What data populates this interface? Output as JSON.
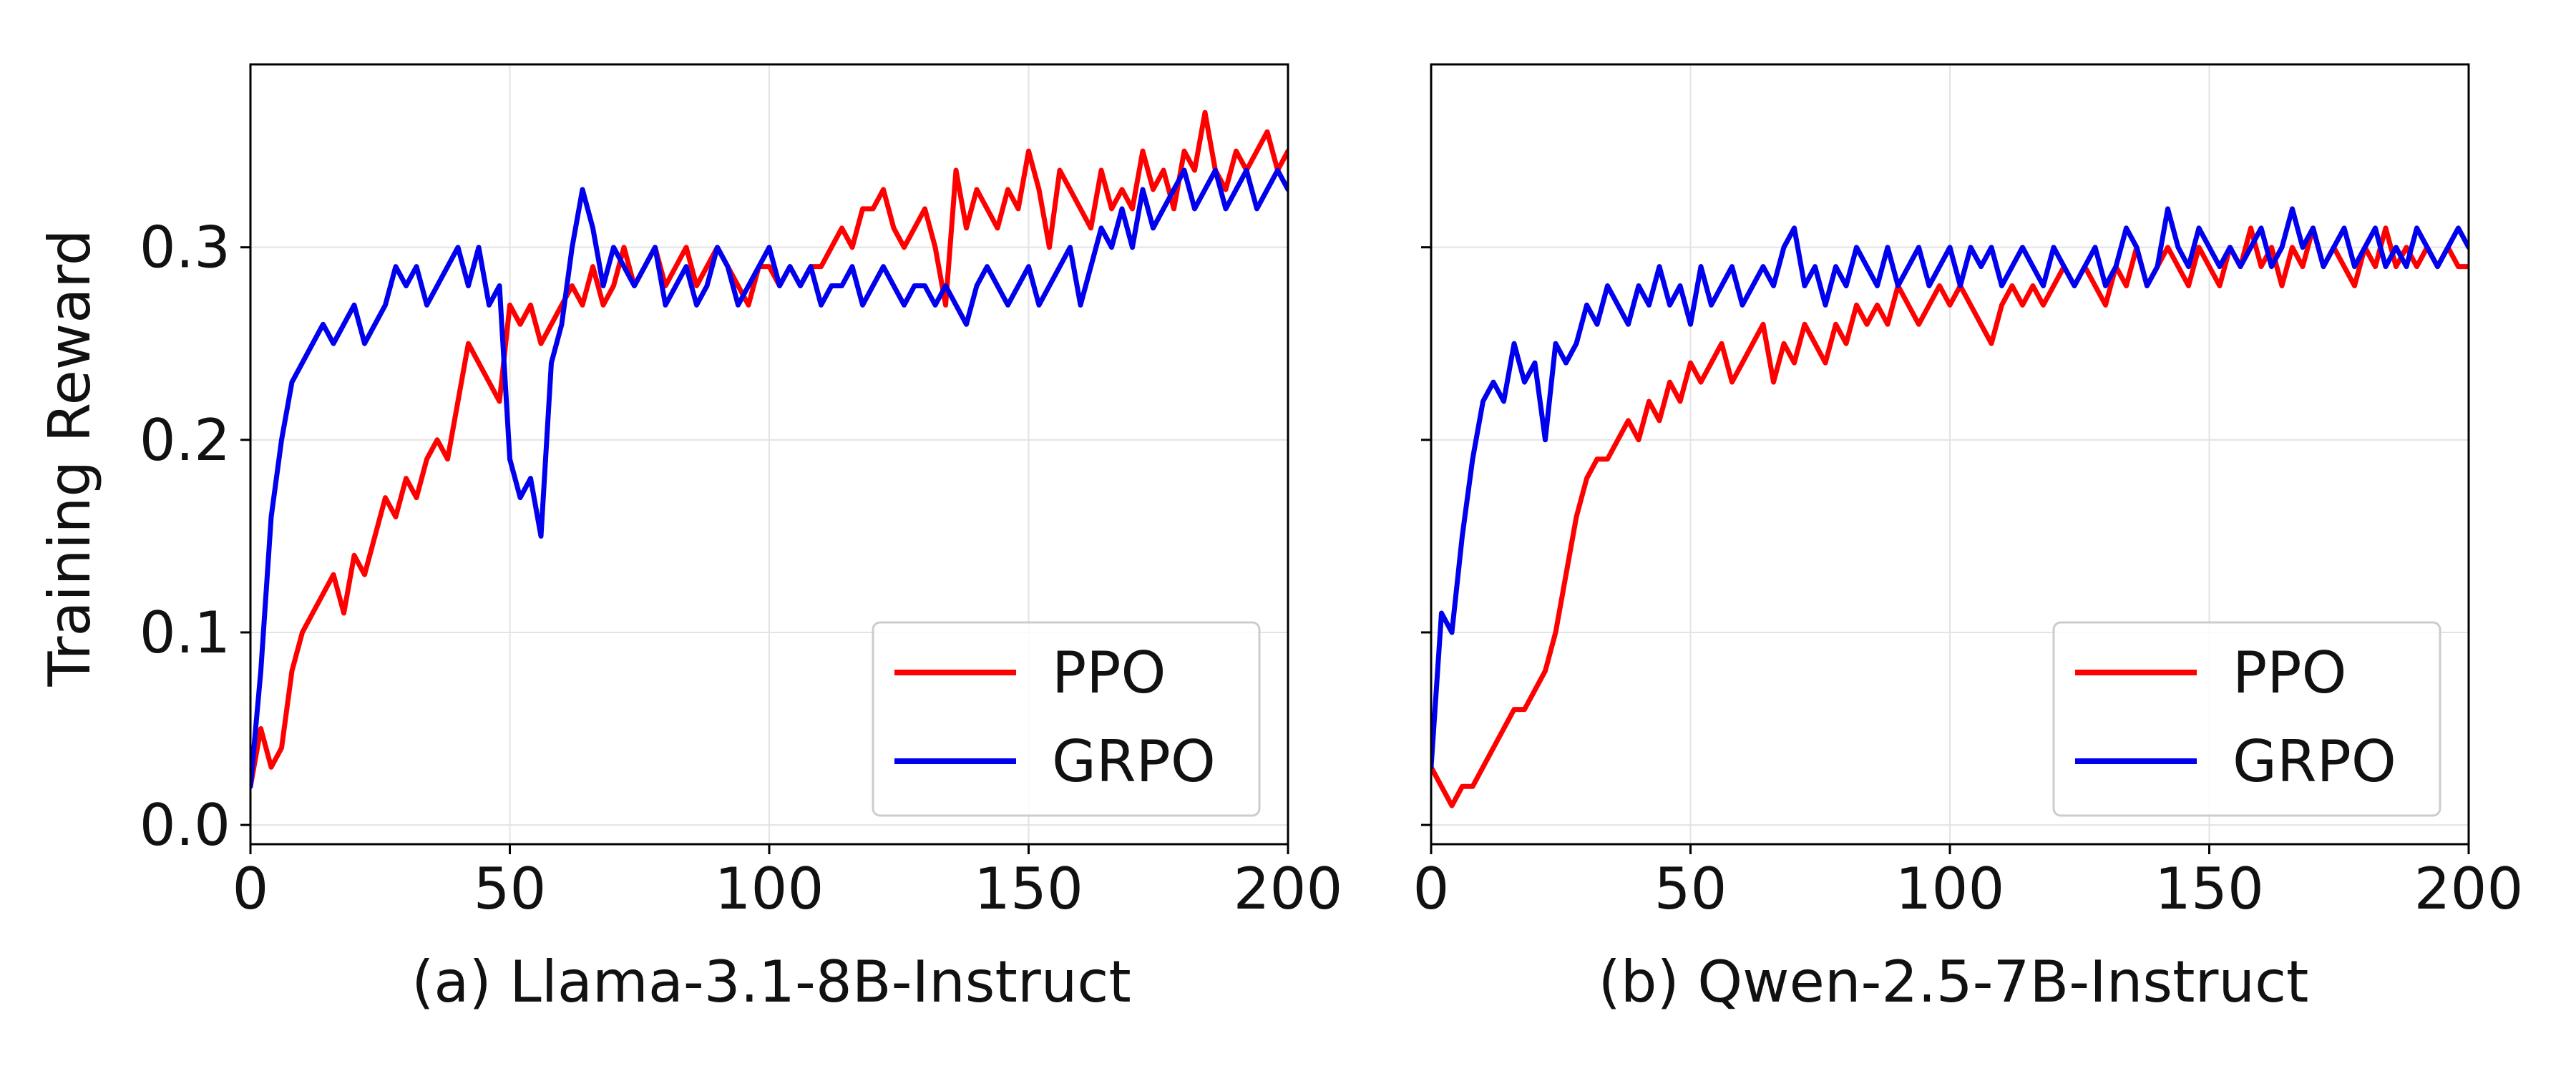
{
  "figure": {
    "shared_ylabel": "Training Reward",
    "yticks": [
      0.0,
      0.1,
      0.2,
      0.3
    ],
    "ytick_labels": [
      "0.0",
      "0.1",
      "0.2",
      "0.3"
    ],
    "xticks": [
      0,
      50,
      100,
      150,
      200
    ],
    "xtick_labels": [
      "0",
      "50",
      "100",
      "150",
      "200"
    ],
    "grid": true,
    "legend_position": "lower-right"
  },
  "chart_data": [
    {
      "type": "line",
      "title": "",
      "caption": "(a) Llama-3.1-8B-Instruct",
      "xlabel": "",
      "ylabel": "Training Reward",
      "xlim": [
        0,
        200
      ],
      "ylim": [
        -0.01,
        0.395
      ],
      "series": [
        {
          "name": "PPO",
          "color": "#ff0000",
          "x": [
            0,
            2,
            4,
            6,
            8,
            10,
            12,
            14,
            16,
            18,
            20,
            22,
            24,
            26,
            28,
            30,
            32,
            34,
            36,
            38,
            40,
            42,
            44,
            46,
            48,
            50,
            52,
            54,
            56,
            58,
            60,
            62,
            64,
            66,
            68,
            70,
            72,
            74,
            76,
            78,
            80,
            82,
            84,
            86,
            88,
            90,
            92,
            94,
            96,
            98,
            100,
            102,
            104,
            106,
            108,
            110,
            112,
            114,
            116,
            118,
            120,
            122,
            124,
            126,
            128,
            130,
            132,
            134,
            136,
            138,
            140,
            142,
            144,
            146,
            148,
            150,
            152,
            154,
            156,
            158,
            160,
            162,
            164,
            166,
            168,
            170,
            172,
            174,
            176,
            178,
            180,
            182,
            184,
            186,
            188,
            190,
            192,
            194,
            196,
            198,
            200
          ],
          "y": [
            0.02,
            0.05,
            0.03,
            0.04,
            0.08,
            0.1,
            0.11,
            0.12,
            0.13,
            0.11,
            0.14,
            0.13,
            0.15,
            0.17,
            0.16,
            0.18,
            0.17,
            0.19,
            0.2,
            0.19,
            0.22,
            0.25,
            0.24,
            0.23,
            0.22,
            0.27,
            0.26,
            0.27,
            0.25,
            0.26,
            0.27,
            0.28,
            0.27,
            0.29,
            0.27,
            0.28,
            0.3,
            0.28,
            0.29,
            0.3,
            0.28,
            0.29,
            0.3,
            0.28,
            0.29,
            0.3,
            0.29,
            0.28,
            0.27,
            0.29,
            0.29,
            0.28,
            0.29,
            0.28,
            0.29,
            0.29,
            0.3,
            0.31,
            0.3,
            0.32,
            0.32,
            0.33,
            0.31,
            0.3,
            0.31,
            0.32,
            0.3,
            0.27,
            0.34,
            0.31,
            0.33,
            0.32,
            0.31,
            0.33,
            0.32,
            0.35,
            0.33,
            0.3,
            0.34,
            0.33,
            0.32,
            0.31,
            0.34,
            0.32,
            0.33,
            0.32,
            0.35,
            0.33,
            0.34,
            0.32,
            0.35,
            0.34,
            0.37,
            0.34,
            0.33,
            0.35,
            0.34,
            0.35,
            0.36,
            0.34,
            0.35
          ]
        },
        {
          "name": "GRPO",
          "color": "#0000ee",
          "x": [
            0,
            2,
            4,
            6,
            8,
            10,
            12,
            14,
            16,
            18,
            20,
            22,
            24,
            26,
            28,
            30,
            32,
            34,
            36,
            38,
            40,
            42,
            44,
            46,
            48,
            50,
            52,
            54,
            56,
            58,
            60,
            62,
            64,
            66,
            68,
            70,
            72,
            74,
            76,
            78,
            80,
            82,
            84,
            86,
            88,
            90,
            92,
            94,
            96,
            98,
            100,
            102,
            104,
            106,
            108,
            110,
            112,
            114,
            116,
            118,
            120,
            122,
            124,
            126,
            128,
            130,
            132,
            134,
            136,
            138,
            140,
            142,
            144,
            146,
            148,
            150,
            152,
            154,
            156,
            158,
            160,
            162,
            164,
            166,
            168,
            170,
            172,
            174,
            176,
            178,
            180,
            182,
            184,
            186,
            188,
            190,
            192,
            194,
            196,
            198,
            200
          ],
          "y": [
            0.02,
            0.08,
            0.16,
            0.2,
            0.23,
            0.24,
            0.25,
            0.26,
            0.25,
            0.26,
            0.27,
            0.25,
            0.26,
            0.27,
            0.29,
            0.28,
            0.29,
            0.27,
            0.28,
            0.29,
            0.3,
            0.28,
            0.3,
            0.27,
            0.28,
            0.19,
            0.17,
            0.18,
            0.15,
            0.24,
            0.26,
            0.3,
            0.33,
            0.31,
            0.28,
            0.3,
            0.29,
            0.28,
            0.29,
            0.3,
            0.27,
            0.28,
            0.29,
            0.27,
            0.28,
            0.3,
            0.29,
            0.27,
            0.28,
            0.29,
            0.3,
            0.28,
            0.29,
            0.28,
            0.29,
            0.27,
            0.28,
            0.28,
            0.29,
            0.27,
            0.28,
            0.29,
            0.28,
            0.27,
            0.28,
            0.28,
            0.27,
            0.28,
            0.27,
            0.26,
            0.28,
            0.29,
            0.28,
            0.27,
            0.28,
            0.29,
            0.27,
            0.28,
            0.29,
            0.3,
            0.27,
            0.29,
            0.31,
            0.3,
            0.32,
            0.3,
            0.33,
            0.31,
            0.32,
            0.33,
            0.34,
            0.32,
            0.33,
            0.34,
            0.32,
            0.33,
            0.34,
            0.32,
            0.33,
            0.34,
            0.33
          ]
        }
      ]
    },
    {
      "type": "line",
      "title": "",
      "caption": "(b) Qwen-2.5-7B-Instruct",
      "xlabel": "",
      "ylabel": "",
      "xlim": [
        0,
        200
      ],
      "ylim": [
        -0.01,
        0.395
      ],
      "series": [
        {
          "name": "PPO",
          "color": "#ff0000",
          "x": [
            0,
            2,
            4,
            6,
            8,
            10,
            12,
            14,
            16,
            18,
            20,
            22,
            24,
            26,
            28,
            30,
            32,
            34,
            36,
            38,
            40,
            42,
            44,
            46,
            48,
            50,
            52,
            54,
            56,
            58,
            60,
            62,
            64,
            66,
            68,
            70,
            72,
            74,
            76,
            78,
            80,
            82,
            84,
            86,
            88,
            90,
            92,
            94,
            96,
            98,
            100,
            102,
            104,
            106,
            108,
            110,
            112,
            114,
            116,
            118,
            120,
            122,
            124,
            126,
            128,
            130,
            132,
            134,
            136,
            138,
            140,
            142,
            144,
            146,
            148,
            150,
            152,
            154,
            156,
            158,
            160,
            162,
            164,
            166,
            168,
            170,
            172,
            174,
            176,
            178,
            180,
            182,
            184,
            186,
            188,
            190,
            192,
            194,
            196,
            198,
            200
          ],
          "y": [
            0.03,
            0.02,
            0.01,
            0.02,
            0.02,
            0.03,
            0.04,
            0.05,
            0.06,
            0.06,
            0.07,
            0.08,
            0.1,
            0.13,
            0.16,
            0.18,
            0.19,
            0.19,
            0.2,
            0.21,
            0.2,
            0.22,
            0.21,
            0.23,
            0.22,
            0.24,
            0.23,
            0.24,
            0.25,
            0.23,
            0.24,
            0.25,
            0.26,
            0.23,
            0.25,
            0.24,
            0.26,
            0.25,
            0.24,
            0.26,
            0.25,
            0.27,
            0.26,
            0.27,
            0.26,
            0.28,
            0.27,
            0.26,
            0.27,
            0.28,
            0.27,
            0.28,
            0.27,
            0.26,
            0.25,
            0.27,
            0.28,
            0.27,
            0.28,
            0.27,
            0.28,
            0.29,
            0.28,
            0.29,
            0.28,
            0.27,
            0.29,
            0.28,
            0.3,
            0.28,
            0.29,
            0.3,
            0.29,
            0.28,
            0.3,
            0.29,
            0.28,
            0.3,
            0.29,
            0.31,
            0.29,
            0.3,
            0.28,
            0.3,
            0.29,
            0.31,
            0.29,
            0.3,
            0.29,
            0.28,
            0.3,
            0.29,
            0.31,
            0.29,
            0.3,
            0.29,
            0.3,
            0.29,
            0.3,
            0.29,
            0.29
          ]
        },
        {
          "name": "GRPO",
          "color": "#0000ee",
          "x": [
            0,
            2,
            4,
            6,
            8,
            10,
            12,
            14,
            16,
            18,
            20,
            22,
            24,
            26,
            28,
            30,
            32,
            34,
            36,
            38,
            40,
            42,
            44,
            46,
            48,
            50,
            52,
            54,
            56,
            58,
            60,
            62,
            64,
            66,
            68,
            70,
            72,
            74,
            76,
            78,
            80,
            82,
            84,
            86,
            88,
            90,
            92,
            94,
            96,
            98,
            100,
            102,
            104,
            106,
            108,
            110,
            112,
            114,
            116,
            118,
            120,
            122,
            124,
            126,
            128,
            130,
            132,
            134,
            136,
            138,
            140,
            142,
            144,
            146,
            148,
            150,
            152,
            154,
            156,
            158,
            160,
            162,
            164,
            166,
            168,
            170,
            172,
            174,
            176,
            178,
            180,
            182,
            184,
            186,
            188,
            190,
            192,
            194,
            196,
            198,
            200
          ],
          "y": [
            0.03,
            0.11,
            0.1,
            0.15,
            0.19,
            0.22,
            0.23,
            0.22,
            0.25,
            0.23,
            0.24,
            0.2,
            0.25,
            0.24,
            0.25,
            0.27,
            0.26,
            0.28,
            0.27,
            0.26,
            0.28,
            0.27,
            0.29,
            0.27,
            0.28,
            0.26,
            0.29,
            0.27,
            0.28,
            0.29,
            0.27,
            0.28,
            0.29,
            0.28,
            0.3,
            0.31,
            0.28,
            0.29,
            0.27,
            0.29,
            0.28,
            0.3,
            0.29,
            0.28,
            0.3,
            0.28,
            0.29,
            0.3,
            0.28,
            0.29,
            0.3,
            0.28,
            0.3,
            0.29,
            0.3,
            0.28,
            0.29,
            0.3,
            0.29,
            0.28,
            0.3,
            0.29,
            0.28,
            0.29,
            0.3,
            0.28,
            0.29,
            0.31,
            0.3,
            0.28,
            0.29,
            0.32,
            0.3,
            0.29,
            0.31,
            0.3,
            0.29,
            0.3,
            0.29,
            0.3,
            0.31,
            0.29,
            0.3,
            0.32,
            0.3,
            0.31,
            0.29,
            0.3,
            0.31,
            0.29,
            0.3,
            0.31,
            0.29,
            0.3,
            0.29,
            0.31,
            0.3,
            0.29,
            0.3,
            0.31,
            0.3
          ]
        }
      ]
    }
  ]
}
